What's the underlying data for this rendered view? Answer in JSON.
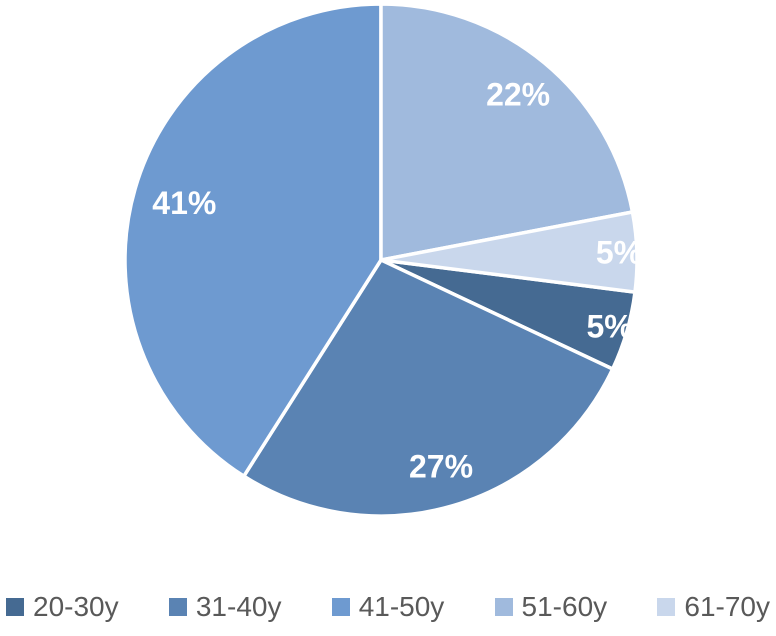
{
  "chart_data": {
    "type": "pie",
    "title": "",
    "categories": [
      "20-30y",
      "31-40y",
      "41-50y",
      "51-60y",
      "61-70y"
    ],
    "values": [
      5,
      27,
      41,
      22,
      5
    ],
    "data_labels": [
      "5%",
      "27%",
      "41%",
      "22%",
      "5%"
    ],
    "colors": [
      "#456A92",
      "#5A83B3",
      "#6E9AD0",
      "#A0BADD",
      "#C9D7EC"
    ],
    "start_angle_deg": 97.2,
    "direction": "clockwise",
    "label_radius_frac": [
      0.93,
      0.84,
      0.8,
      0.84,
      0.93
    ],
    "data_label_color": "#FFFFFF",
    "slice_border_color": "#FFFFFF",
    "background": "#FFFFFF",
    "legend": {
      "position": "bottom",
      "text_color": "#595959",
      "items": [
        "20-30y",
        "31-40y",
        "41-50y",
        "51-60y",
        "61-70y"
      ]
    }
  }
}
